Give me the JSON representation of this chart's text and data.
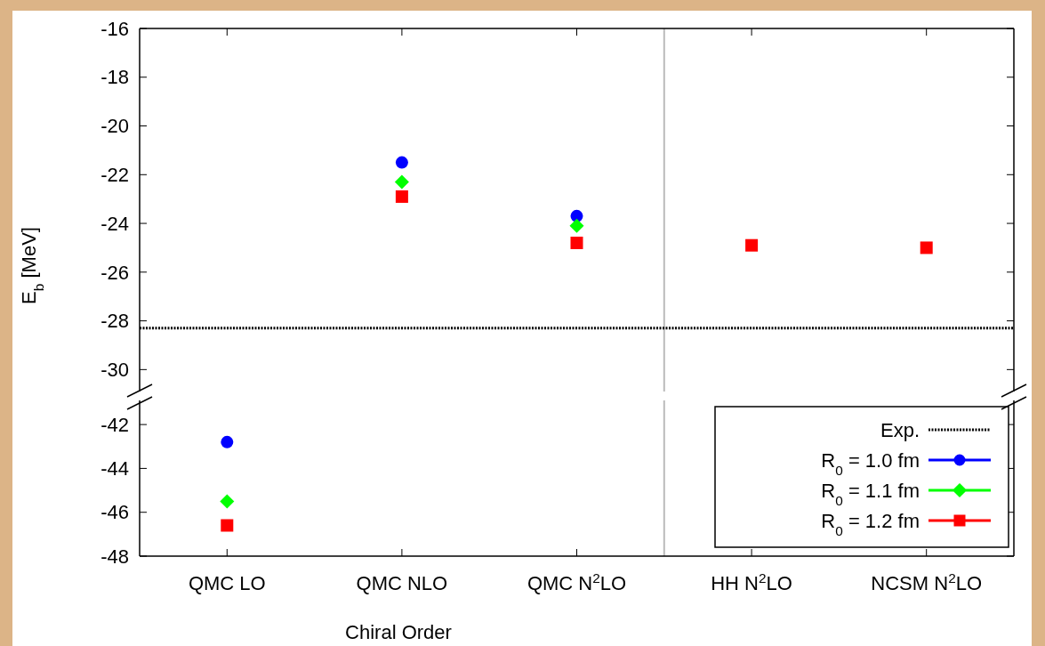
{
  "chart_data": [
    {
      "type": "scatter",
      "ylabel": "E$_{b}$ [MeV]",
      "categories": [
        null,
        null,
        null,
        null,
        null
      ],
      "ylim": [
        -30.9,
        -16
      ],
      "yticks": [
        -30,
        -28,
        -26,
        -24,
        -22,
        -20,
        -18,
        -16
      ],
      "tick_labels": "y",
      "series": [
        {
          "color": "#0000ff",
          "marker": "circle",
          "values": [
            null,
            -21.5,
            -23.7,
            null,
            null
          ]
        },
        {
          "color": "#00ff00",
          "marker": "diamond",
          "values": [
            null,
            -22.3,
            -24.1,
            null,
            null
          ]
        },
        {
          "color": "#ff0000",
          "marker": "square",
          "values": [
            null,
            -22.9,
            -24.8,
            -24.9,
            -25.0
          ]
        }
      ],
      "ref_lines": [
        {
          "axis": "y",
          "value": -28.3,
          "label": "Exp.",
          "color": "#000000",
          "line_style": "dotted"
        }
      ]
    },
    {
      "type": "scatter",
      "xlabel": "Chiral Order",
      "categories": [
        "QMC LO",
        "QMC NLO",
        "QMC N$^{2}$LO",
        "HH N$^{2}$LO",
        "NCSM N$^{2}$LO"
      ],
      "ylim": [
        -48,
        -40.9
      ],
      "yticks": [
        -48,
        -46,
        -44,
        -42
      ],
      "legend": "bottom right",
      "series": [
        {
          "name": "R$_{0}$ = 1.0 fm",
          "color": "#0000ff",
          "marker": "circle",
          "values": [
            -42.8,
            null,
            null,
            null,
            null
          ]
        },
        {
          "name": "R$_{0}$ = 1.1 fm",
          "color": "#00ff00",
          "marker": "diamond",
          "values": [
            -45.5,
            null,
            null,
            null,
            null
          ]
        },
        {
          "name": "R$_{0}$ = 1.2 fm",
          "color": "#ff0000",
          "marker": "square",
          "values": [
            -46.6,
            null,
            null,
            null,
            null
          ]
        }
      ]
    }
  ]
}
